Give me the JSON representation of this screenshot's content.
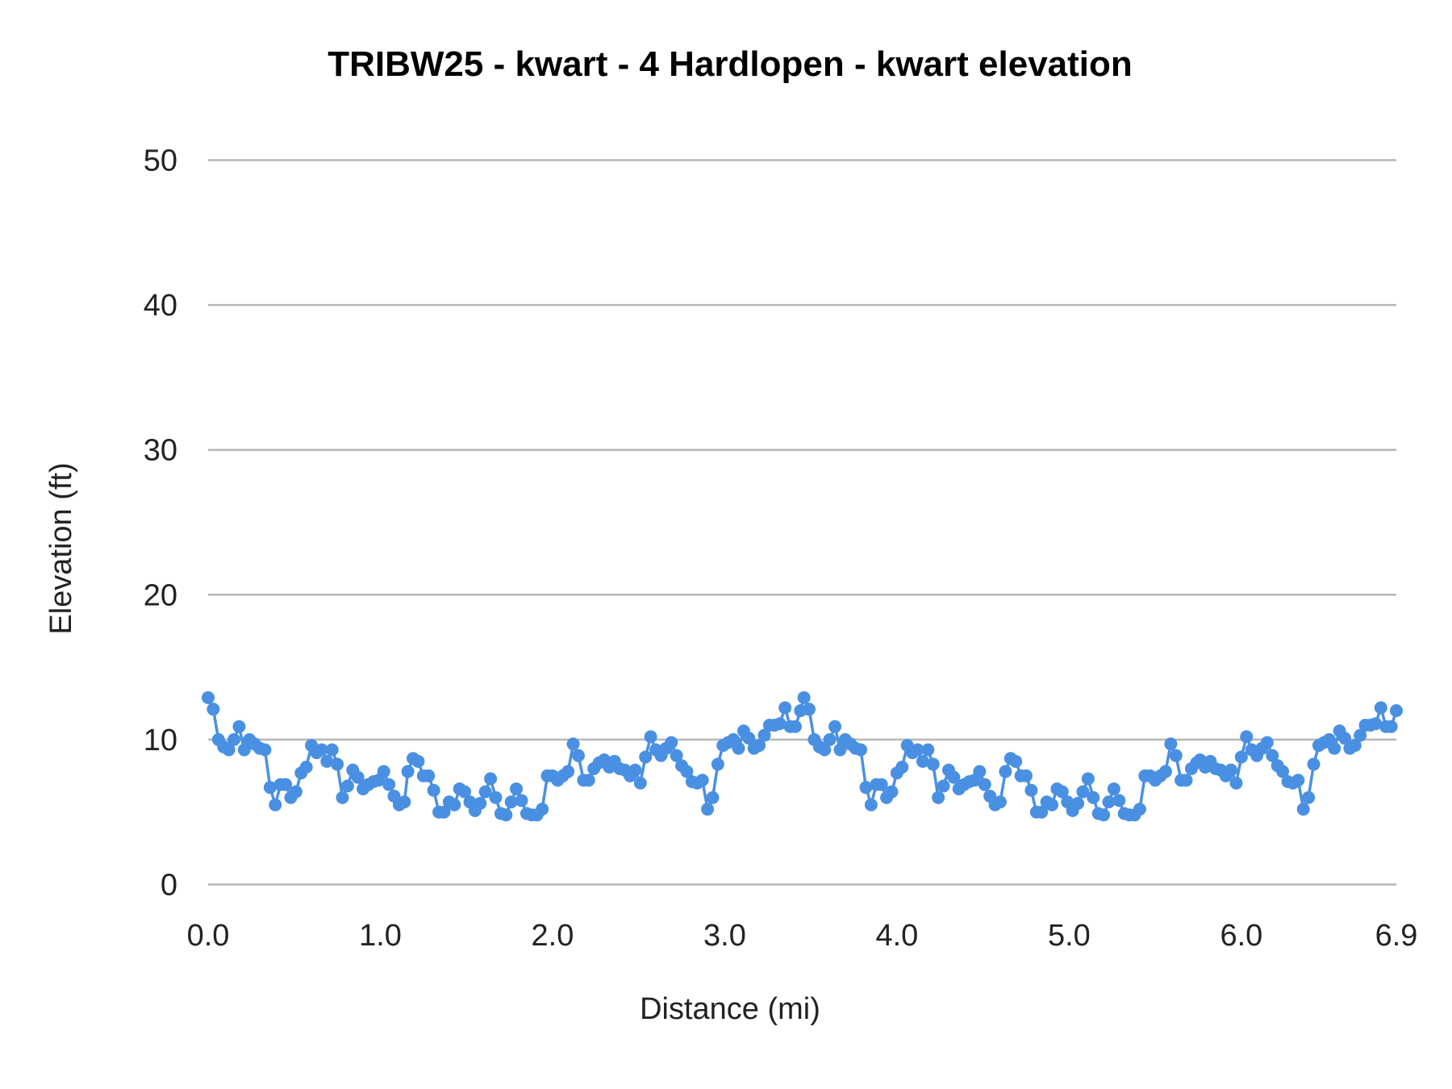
{
  "chart_data": {
    "type": "line",
    "title": "TRIBW25 - kwart - 4 Hardlopen - kwart elevation",
    "xlabel": "Distance (mi)",
    "ylabel": "Elevation (ft)",
    "xlim": [
      0,
      6.9
    ],
    "ylim": [
      0,
      50
    ],
    "x_ticks": [
      "0.0",
      "1.0",
      "2.0",
      "3.0",
      "4.0",
      "5.0",
      "6.0",
      "6.9"
    ],
    "x_tick_values": [
      0,
      1,
      2,
      3,
      4,
      5,
      6,
      6.9
    ],
    "y_ticks": [
      "0",
      "10",
      "20",
      "30",
      "40",
      "50"
    ],
    "y_tick_values": [
      0,
      10,
      20,
      30,
      40,
      50
    ],
    "grid": "horizontal",
    "markers": true,
    "legend": "none",
    "series_color": "#4a90e2",
    "grid_color": "#b7b7b7",
    "x": [
      0,
      0.03,
      0.06,
      0.09,
      0.12,
      0.15,
      0.18,
      0.21,
      0.24,
      0.27,
      0.3,
      0.33,
      0.36,
      0.39,
      0.42,
      0.45,
      0.48,
      0.51,
      0.54,
      0.57,
      0.6,
      0.63,
      0.66,
      0.69,
      0.72,
      0.75,
      0.78,
      0.81,
      0.84,
      0.87,
      0.9,
      0.93,
      0.96,
      0.99,
      1.02,
      1.05,
      1.08,
      1.11,
      1.14,
      1.16,
      1.19,
      1.22,
      1.25,
      1.28,
      1.31,
      1.34,
      1.37,
      1.4,
      1.43,
      1.46,
      1.49,
      1.52,
      1.55,
      1.58,
      1.61,
      1.64,
      1.67,
      1.7,
      1.73,
      1.76,
      1.79,
      1.82,
      1.85,
      1.88,
      1.91,
      1.94,
      1.97,
      2,
      2.03,
      2.06,
      2.09,
      2.12,
      2.15,
      2.18,
      2.21,
      2.24,
      2.27,
      2.3,
      2.33,
      2.36,
      2.39,
      2.42,
      2.45,
      2.48,
      2.51,
      2.54,
      2.57,
      2.6,
      2.63,
      2.66,
      2.69,
      2.72,
      2.75,
      2.78,
      2.81,
      2.84,
      2.87,
      2.9,
      2.93,
      2.96,
      2.99,
      3.02,
      3.05,
      3.08,
      3.11,
      3.14,
      3.17,
      3.2,
      3.23,
      3.26,
      3.29,
      3.32,
      3.35,
      3.38,
      3.41,
      3.44,
      3.46,
      3.49,
      3.52,
      3.55,
      3.58,
      3.61,
      3.64,
      3.67,
      3.7,
      3.73,
      3.76,
      3.79,
      3.82,
      3.85,
      3.88,
      3.91,
      3.94,
      3.97,
      4,
      4.03,
      4.06,
      4.09,
      4.12,
      4.15,
      4.18,
      4.21,
      4.24,
      4.27,
      4.3,
      4.33,
      4.36,
      4.39,
      4.42,
      4.45,
      4.48,
      4.51,
      4.54,
      4.57,
      4.6,
      4.63,
      4.66,
      4.69,
      4.72,
      4.75,
      4.78,
      4.81,
      4.84,
      4.87,
      4.9,
      4.93,
      4.96,
      4.99,
      5.02,
      5.05,
      5.08,
      5.11,
      5.14,
      5.17,
      5.2,
      5.23,
      5.26,
      5.29,
      5.32,
      5.35,
      5.38,
      5.41,
      5.44,
      5.47,
      5.5,
      5.53,
      5.56,
      5.59,
      5.62,
      5.65,
      5.68,
      5.71,
      5.74,
      5.76,
      5.79,
      5.82,
      5.85,
      5.88,
      5.91,
      5.94,
      5.97,
      6,
      6.03,
      6.06,
      6.09,
      6.12,
      6.15,
      6.18,
      6.21,
      6.24,
      6.27,
      6.3,
      6.33,
      6.36,
      6.39,
      6.42,
      6.45,
      6.48,
      6.51,
      6.54,
      6.57,
      6.6,
      6.63,
      6.66,
      6.69,
      6.72,
      6.75,
      6.78,
      6.81,
      6.84,
      6.87,
      6.9
    ],
    "y": [
      12.9,
      12.1,
      10.0,
      9.5,
      9.3,
      10.0,
      10.9,
      9.3,
      10.0,
      9.7,
      9.4,
      9.3,
      6.7,
      5.5,
      6.9,
      6.9,
      6.0,
      6.4,
      7.7,
      8.1,
      9.6,
      9.1,
      9.3,
      8.5,
      9.3,
      8.3,
      6.0,
      6.8,
      7.9,
      7.4,
      6.6,
      6.9,
      7.1,
      7.2,
      7.8,
      6.9,
      6.1,
      5.5,
      5.7,
      7.8,
      8.7,
      8.5,
      7.5,
      7.5,
      6.5,
      5.0,
      5.0,
      5.7,
      5.5,
      6.6,
      6.4,
      5.7,
      5.1,
      5.6,
      6.4,
      7.3,
      6.0,
      4.9,
      4.8,
      5.7,
      6.6,
      5.8,
      4.9,
      4.8,
      4.8,
      5.2,
      7.5,
      7.5,
      7.2,
      7.5,
      7.8,
      9.7,
      8.9,
      7.2,
      7.2,
      8.0,
      8.4,
      8.6,
      8.1,
      8.5,
      8.0,
      7.9,
      7.5,
      7.9,
      7.0,
      8.8,
      10.2,
      9.3,
      8.9,
      9.4,
      9.8,
      8.9,
      8.2,
      7.8,
      7.1,
      7.0,
      7.2,
      5.2,
      6.0,
      8.3,
      9.6,
      9.8,
      10.0,
      9.4,
      10.6,
      10.1,
      9.4,
      9.6,
      10.3,
      11.0,
      11.0,
      11.1,
      12.2,
      10.9,
      10.9,
      12.0,
      12.9,
      12.1,
      10.0,
      9.5,
      9.3,
      10.0,
      10.9,
      9.3,
      10.0,
      9.7,
      9.4,
      9.3,
      6.7,
      5.5,
      6.9,
      6.9,
      6.0,
      6.4,
      7.7,
      8.1,
      9.6,
      9.1,
      9.3,
      8.5,
      9.3,
      8.3,
      6.0,
      6.8,
      7.9,
      7.4,
      6.6,
      6.9,
      7.1,
      7.2,
      7.8,
      6.9,
      6.1,
      5.5,
      5.7,
      7.8,
      8.7,
      8.5,
      7.5,
      7.5,
      6.5,
      5.0,
      5.0,
      5.7,
      5.5,
      6.6,
      6.4,
      5.7,
      5.1,
      5.6,
      6.4,
      7.3,
      6.0,
      4.9,
      4.8,
      5.7,
      6.6,
      5.8,
      4.9,
      4.8,
      4.8,
      5.2,
      7.5,
      7.5,
      7.2,
      7.5,
      7.8,
      9.7,
      8.9,
      7.2,
      7.2,
      8.0,
      8.4,
      8.6,
      8.1,
      8.5,
      8.0,
      7.9,
      7.5,
      7.9,
      7.0,
      8.8,
      10.2,
      9.3,
      8.9,
      9.4,
      9.8,
      8.9,
      8.2,
      7.8,
      7.1,
      7.0,
      7.2,
      5.2,
      6.0,
      8.3,
      9.6,
      9.8,
      10.0,
      9.4,
      10.6,
      10.1,
      9.4,
      9.6,
      10.3,
      11.0,
      11.0,
      11.1,
      12.2,
      10.9,
      10.9,
      12.0
    ]
  }
}
